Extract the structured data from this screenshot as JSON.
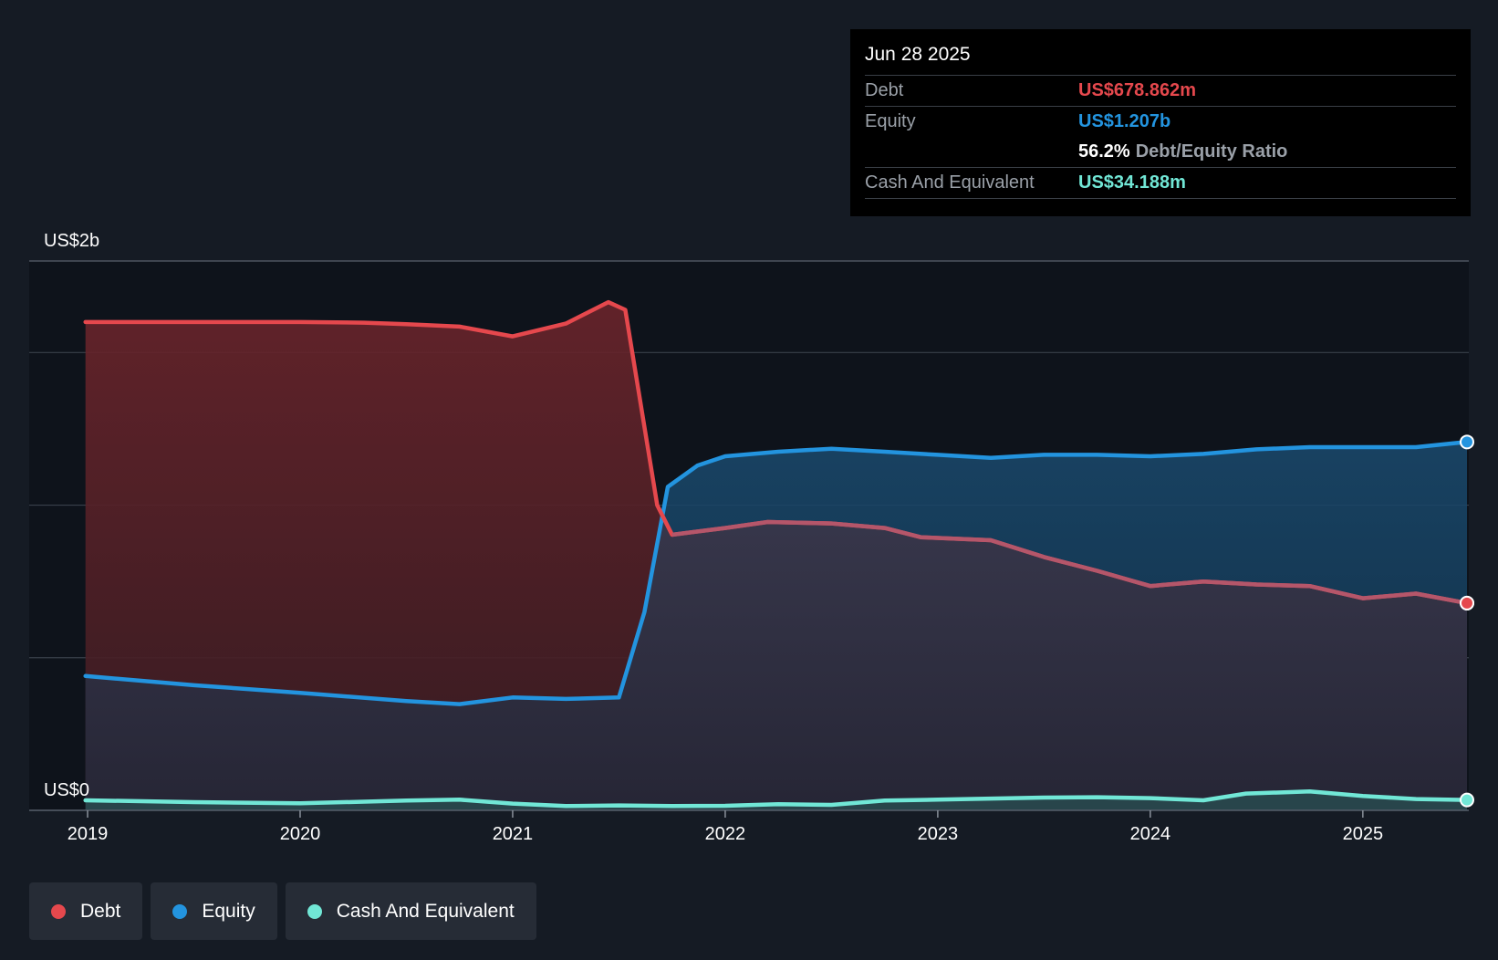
{
  "colors": {
    "debt": "#e5484d",
    "equity": "#2394df",
    "cash": "#71e7d6",
    "grid": "#39404b",
    "plot_bg": "#0e131b"
  },
  "tooltip": {
    "date": "Jun 28 2025",
    "debt_label": "Debt",
    "debt_value": "US$678.862m",
    "equity_label": "Equity",
    "equity_value": "US$1.207b",
    "ratio_value": "56.2%",
    "ratio_label": "Debt/Equity Ratio",
    "cash_label": "Cash And Equivalent",
    "cash_value": "US$34.188m"
  },
  "legend": [
    {
      "label": "Debt",
      "color_key": "debt"
    },
    {
      "label": "Equity",
      "color_key": "equity"
    },
    {
      "label": "Cash And Equivalent",
      "color_key": "cash"
    }
  ],
  "chart_data": {
    "type": "area",
    "title": "",
    "xlabel": "",
    "ylabel": "",
    "xlim": [
      2019.0,
      2025.49
    ],
    "ylim": [
      0,
      1.8
    ],
    "y_tick_labels": [
      {
        "value": 1.8,
        "label": "US$2b"
      },
      {
        "value": 0,
        "label": "US$0"
      }
    ],
    "gridlines": [
      0,
      0.5,
      1.0,
      1.5,
      1.8
    ],
    "x_ticks": [
      {
        "value": 2019,
        "label": "2019"
      },
      {
        "value": 2020,
        "label": "2020"
      },
      {
        "value": 2021,
        "label": "2021"
      },
      {
        "value": 2022,
        "label": "2022"
      },
      {
        "value": 2023,
        "label": "2023"
      },
      {
        "value": 2024,
        "label": "2024"
      },
      {
        "value": 2025,
        "label": "2025"
      }
    ],
    "series": [
      {
        "name": "Debt",
        "color_key": "debt",
        "points": [
          [
            2018.99,
            1.6
          ],
          [
            2019.5,
            1.6
          ],
          [
            2020.0,
            1.6
          ],
          [
            2020.3,
            1.598
          ],
          [
            2020.5,
            1.593
          ],
          [
            2020.75,
            1.585
          ],
          [
            2021.0,
            1.553
          ],
          [
            2021.25,
            1.595
          ],
          [
            2021.45,
            1.665
          ],
          [
            2021.53,
            1.64
          ],
          [
            2021.68,
            1.0
          ],
          [
            2021.75,
            0.903
          ],
          [
            2022.0,
            0.925
          ],
          [
            2022.2,
            0.945
          ],
          [
            2022.5,
            0.94
          ],
          [
            2022.75,
            0.925
          ],
          [
            2022.92,
            0.895
          ],
          [
            2023.25,
            0.885
          ],
          [
            2023.5,
            0.83
          ],
          [
            2023.75,
            0.785
          ],
          [
            2024.0,
            0.735
          ],
          [
            2024.25,
            0.75
          ],
          [
            2024.5,
            0.74
          ],
          [
            2024.75,
            0.735
          ],
          [
            2025.0,
            0.695
          ],
          [
            2025.25,
            0.71
          ],
          [
            2025.49,
            0.679
          ]
        ]
      },
      {
        "name": "Equity",
        "color_key": "equity",
        "points": [
          [
            2018.99,
            0.44
          ],
          [
            2019.5,
            0.41
          ],
          [
            2020.0,
            0.385
          ],
          [
            2020.5,
            0.358
          ],
          [
            2020.75,
            0.348
          ],
          [
            2021.0,
            0.37
          ],
          [
            2021.25,
            0.365
          ],
          [
            2021.5,
            0.37
          ],
          [
            2021.62,
            0.65
          ],
          [
            2021.73,
            1.06
          ],
          [
            2021.87,
            1.13
          ],
          [
            2022.0,
            1.16
          ],
          [
            2022.25,
            1.175
          ],
          [
            2022.5,
            1.185
          ],
          [
            2022.75,
            1.175
          ],
          [
            2023.0,
            1.165
          ],
          [
            2023.25,
            1.155
          ],
          [
            2023.5,
            1.165
          ],
          [
            2023.75,
            1.165
          ],
          [
            2024.0,
            1.16
          ],
          [
            2024.25,
            1.168
          ],
          [
            2024.5,
            1.183
          ],
          [
            2024.75,
            1.19
          ],
          [
            2025.0,
            1.19
          ],
          [
            2025.25,
            1.19
          ],
          [
            2025.49,
            1.207
          ]
        ]
      },
      {
        "name": "Cash And Equivalent",
        "color_key": "cash",
        "points": [
          [
            2018.99,
            0.033
          ],
          [
            2019.5,
            0.027
          ],
          [
            2020.0,
            0.023
          ],
          [
            2020.5,
            0.032
          ],
          [
            2020.75,
            0.035
          ],
          [
            2021.0,
            0.022
          ],
          [
            2021.25,
            0.014
          ],
          [
            2021.5,
            0.016
          ],
          [
            2021.75,
            0.014
          ],
          [
            2022.0,
            0.015
          ],
          [
            2022.25,
            0.02
          ],
          [
            2022.5,
            0.018
          ],
          [
            2022.75,
            0.032
          ],
          [
            2023.0,
            0.035
          ],
          [
            2023.5,
            0.042
          ],
          [
            2023.75,
            0.043
          ],
          [
            2024.0,
            0.04
          ],
          [
            2024.25,
            0.033
          ],
          [
            2024.45,
            0.055
          ],
          [
            2024.75,
            0.062
          ],
          [
            2025.0,
            0.047
          ],
          [
            2025.25,
            0.037
          ],
          [
            2025.49,
            0.034
          ]
        ]
      }
    ]
  }
}
